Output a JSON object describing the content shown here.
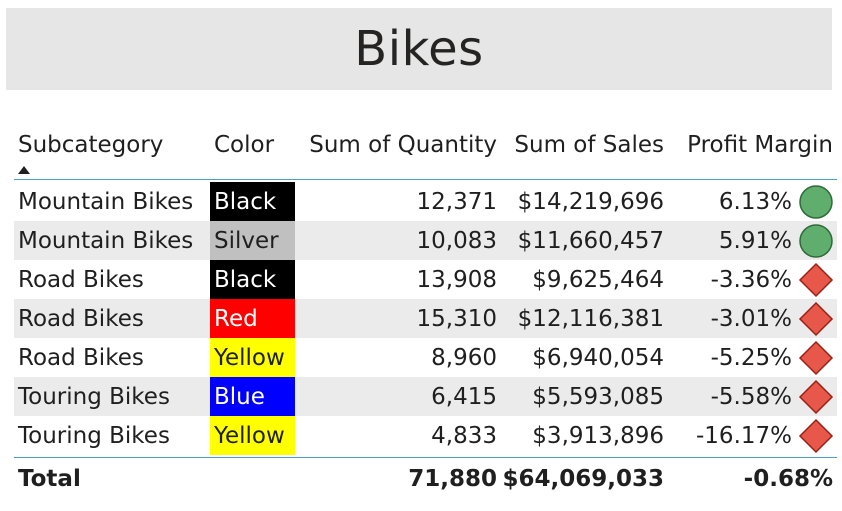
{
  "title": "Bikes",
  "headers": {
    "subcategory": "Subcategory",
    "color": "Color",
    "quantity": "Sum of Quantity",
    "sales": "Sum of Sales",
    "profit_margin": "Profit Margin"
  },
  "rows": [
    {
      "subcategory": "Mountain Bikes",
      "color": "Black",
      "swatch": "#000000",
      "text_color": "#ffffff",
      "quantity": "12,371",
      "sales": "$14,219,696",
      "profit_margin": "6.13%",
      "kpi": "green-circle"
    },
    {
      "subcategory": "Mountain Bikes",
      "color": "Silver",
      "swatch": "#c0c0c0",
      "text_color": "#1f1f1f",
      "quantity": "10,083",
      "sales": "$11,660,457",
      "profit_margin": "5.91%",
      "kpi": "green-circle"
    },
    {
      "subcategory": "Road Bikes",
      "color": "Black",
      "swatch": "#000000",
      "text_color": "#ffffff",
      "quantity": "13,908",
      "sales": "$9,625,464",
      "profit_margin": "-3.36%",
      "kpi": "red-diamond"
    },
    {
      "subcategory": "Road Bikes",
      "color": "Red",
      "swatch": "#ff0000",
      "text_color": "#ffffff",
      "quantity": "15,310",
      "sales": "$12,116,381",
      "profit_margin": "-3.01%",
      "kpi": "red-diamond"
    },
    {
      "subcategory": "Road Bikes",
      "color": "Yellow",
      "swatch": "#ffff00",
      "text_color": "#1f1f1f",
      "quantity": "8,960",
      "sales": "$6,940,054",
      "profit_margin": "-5.25%",
      "kpi": "red-diamond"
    },
    {
      "subcategory": "Touring Bikes",
      "color": "Blue",
      "swatch": "#0000ff",
      "text_color": "#ffffff",
      "quantity": "6,415",
      "sales": "$5,593,085",
      "profit_margin": "-5.58%",
      "kpi": "red-diamond"
    },
    {
      "subcategory": "Touring Bikes",
      "color": "Yellow",
      "swatch": "#ffff00",
      "text_color": "#1f1f1f",
      "quantity": "4,833",
      "sales": "$3,913,896",
      "profit_margin": "-16.17%",
      "kpi": "red-diamond"
    }
  ],
  "total": {
    "label": "Total",
    "quantity": "71,880",
    "sales": "$64,069,033",
    "profit_margin": "-0.68%"
  },
  "sort": {
    "column": "subcategory",
    "direction": "ascending"
  },
  "colors": {
    "kpi_green": "#5fae6e",
    "kpi_red": "#e8584a",
    "accent_line": "#4aa0c8",
    "title_bg": "#e6e6e6",
    "alt_row": "#ebebeb"
  }
}
